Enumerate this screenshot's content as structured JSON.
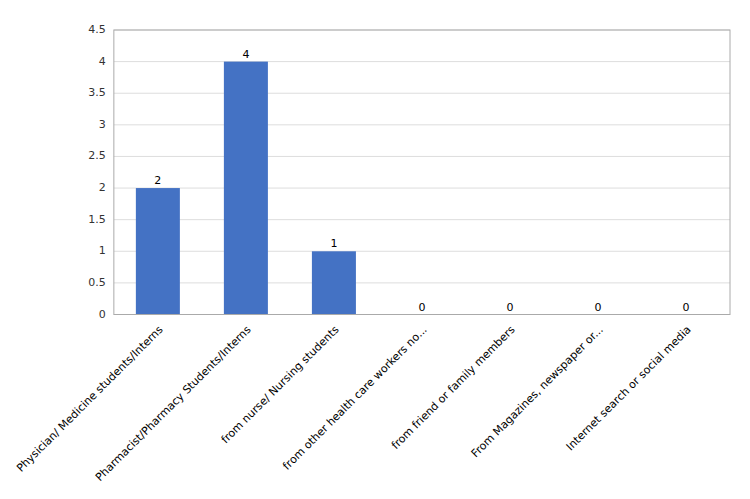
{
  "chart_data": {
    "type": "bar",
    "categories": [
      "Physician/ Medicine students/Interns",
      "Pharmacist/Pharmacy Students/Interns",
      "from nurse/ Nursing students",
      "from other health care workers no...",
      "from friend or family members",
      "From Magazines, newspaper or...",
      "Internet search or social media"
    ],
    "values": [
      2,
      4,
      1,
      0,
      0,
      0,
      0
    ],
    "color": "#4472c4",
    "ylim": [
      0,
      4.5
    ],
    "yticks": [
      0,
      0.5,
      1,
      1.5,
      2,
      2.5,
      3,
      3.5,
      4,
      4.5
    ],
    "grid": true,
    "data_labels": true
  }
}
